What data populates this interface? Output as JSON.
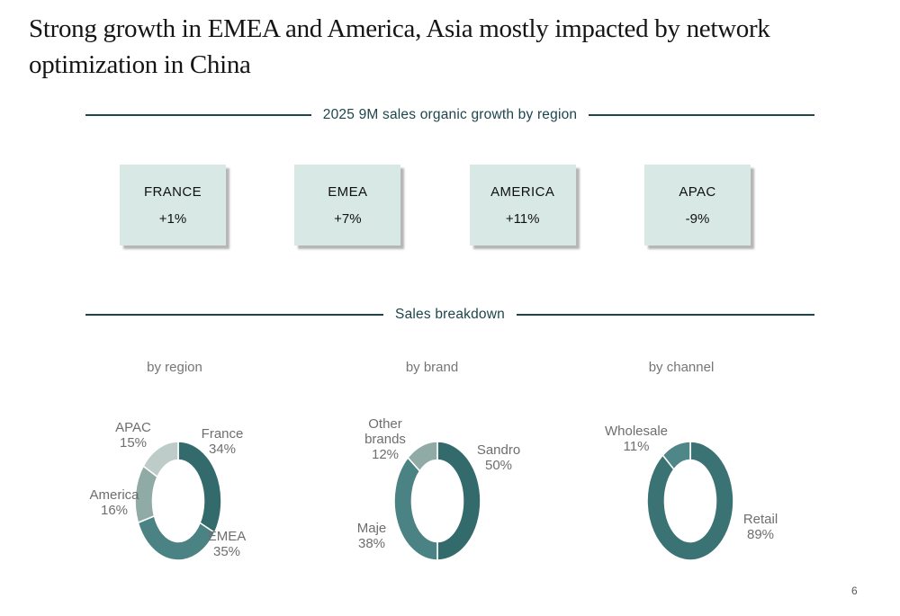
{
  "slide": {
    "title": "Strong growth in EMEA and America, Asia mostly impacted by network optimization in China",
    "page_number": "6"
  },
  "sections": {
    "growth": {
      "header": "2025 9M sales organic growth by region"
    },
    "breakdown": {
      "header": "Sales breakdown"
    }
  },
  "growth_boxes": [
    {
      "region": "FRANCE",
      "value": "+1%"
    },
    {
      "region": "EMEA",
      "value": "+7%"
    },
    {
      "region": "AMERICA",
      "value": "+11%"
    },
    {
      "region": "APAC",
      "value": "-9%"
    }
  ],
  "colors": {
    "header_teal": "#1d454c",
    "box_bg": "#d7e8e5",
    "dark_teal": "#336a6b",
    "medium_teal": "#4b8384",
    "sage": "#90aaa6",
    "light_green_grey": "#bdccc9",
    "retail_teal": "#3b7374",
    "wholesale_teal": "#4f8788",
    "label_grey": "#6e6e6e"
  },
  "chart_data": [
    {
      "type": "pie",
      "subtype": "donut",
      "title": "by region",
      "labels": [
        "France",
        "EMEA",
        "America",
        "APAC"
      ],
      "values": [
        34,
        35,
        16,
        15
      ],
      "pct_labels": [
        "34%",
        "35%",
        "16%",
        "15%"
      ],
      "colors": [
        "#336a6b",
        "#4b8384",
        "#90aaa6",
        "#bdccc9"
      ],
      "start_angle": "12-oclock",
      "direction": "clockwise",
      "legend": "callout-labels"
    },
    {
      "type": "pie",
      "subtype": "donut",
      "title": "by brand",
      "labels": [
        "Sandro",
        "Maje",
        "Other brands"
      ],
      "values": [
        50,
        38,
        12
      ],
      "pct_labels": [
        "50%",
        "38%",
        "12%"
      ],
      "colors": [
        "#336a6b",
        "#4b8384",
        "#90aaa6"
      ],
      "start_angle": "12-oclock",
      "direction": "clockwise",
      "legend": "callout-labels"
    },
    {
      "type": "pie",
      "subtype": "donut",
      "title": "by channel",
      "labels": [
        "Retail",
        "Wholesale"
      ],
      "values": [
        89,
        11
      ],
      "pct_labels": [
        "89%",
        "11%"
      ],
      "colors": [
        "#3b7374",
        "#4f8788"
      ],
      "start_angle": "12-oclock",
      "direction": "clockwise",
      "legend": "callout-labels"
    }
  ]
}
